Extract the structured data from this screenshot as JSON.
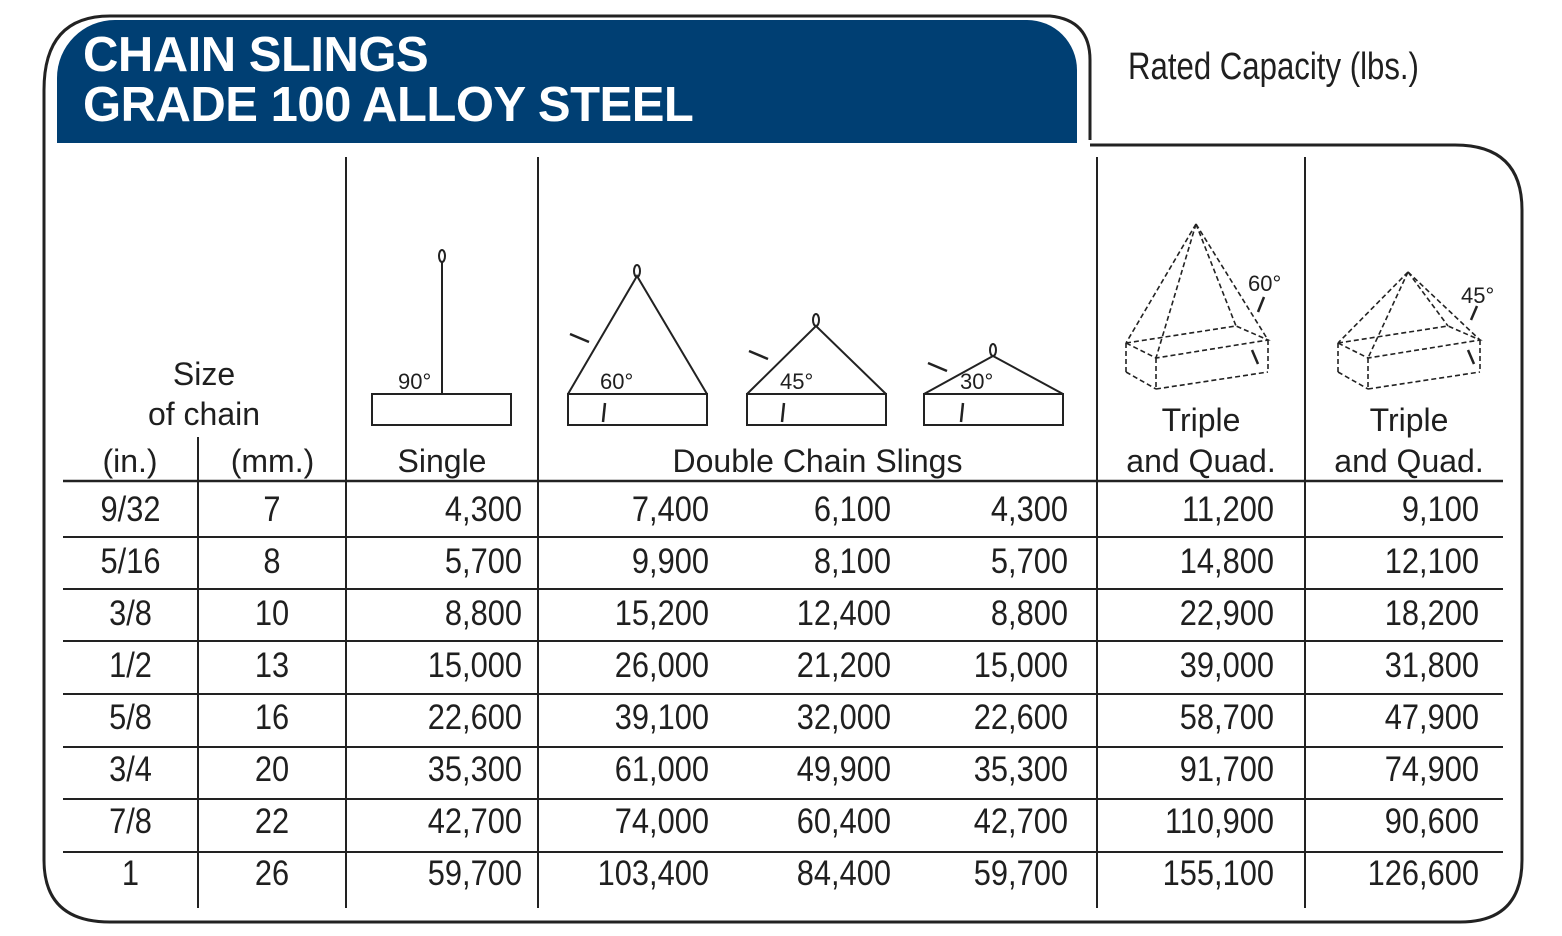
{
  "header": {
    "title_line1": "CHAIN SLINGS",
    "title_line2": "GRADE 100 ALLOY STEEL",
    "rated_capacity": "Rated Capacity (lbs.)",
    "band_color": "#003f73"
  },
  "columns": {
    "size_label_1": "Size",
    "size_label_2": "of chain",
    "in_label": "(in.)",
    "mm_label": "(mm.)",
    "single_label": "Single",
    "double_label": "Double Chain Slings",
    "triple60_label_1": "Triple",
    "triple60_label_2": "and Quad.",
    "triple45_label_1": "Triple",
    "triple45_label_2": "and Quad."
  },
  "diagrams": {
    "single_angle": "90°",
    "double_60_angle": "60°",
    "double_45_angle": "45°",
    "double_30_angle": "30°",
    "triple_60_angle": "60°",
    "triple_45_angle": "45°"
  },
  "table": {
    "headers": [
      "Size (in.)",
      "Size (mm.)",
      "Single 90°",
      "Double 60°",
      "Double 45°",
      "Double 30°",
      "Triple & Quad 60°",
      "Triple & Quad 45°"
    ],
    "rows": [
      [
        "9/32",
        "7",
        "4,300",
        "7,400",
        "6,100",
        "4,300",
        "11,200",
        "9,100"
      ],
      [
        "5/16",
        "8",
        "5,700",
        "9,900",
        "8,100",
        "5,700",
        "14,800",
        "12,100"
      ],
      [
        "3/8",
        "10",
        "8,800",
        "15,200",
        "12,400",
        "8,800",
        "22,900",
        "18,200"
      ],
      [
        "1/2",
        "13",
        "15,000",
        "26,000",
        "21,200",
        "15,000",
        "39,000",
        "31,800"
      ],
      [
        "5/8",
        "16",
        "22,600",
        "39,100",
        "32,000",
        "22,600",
        "58,700",
        "47,900"
      ],
      [
        "3/4",
        "20",
        "35,300",
        "61,000",
        "49,900",
        "35,300",
        "91,700",
        "74,900"
      ],
      [
        "7/8",
        "22",
        "42,700",
        "74,000",
        "60,400",
        "42,700",
        "110,900",
        "90,600"
      ],
      [
        "1",
        "26",
        "59,700",
        "103,400",
        "84,400",
        "59,700",
        "155,100",
        "126,600"
      ]
    ]
  }
}
